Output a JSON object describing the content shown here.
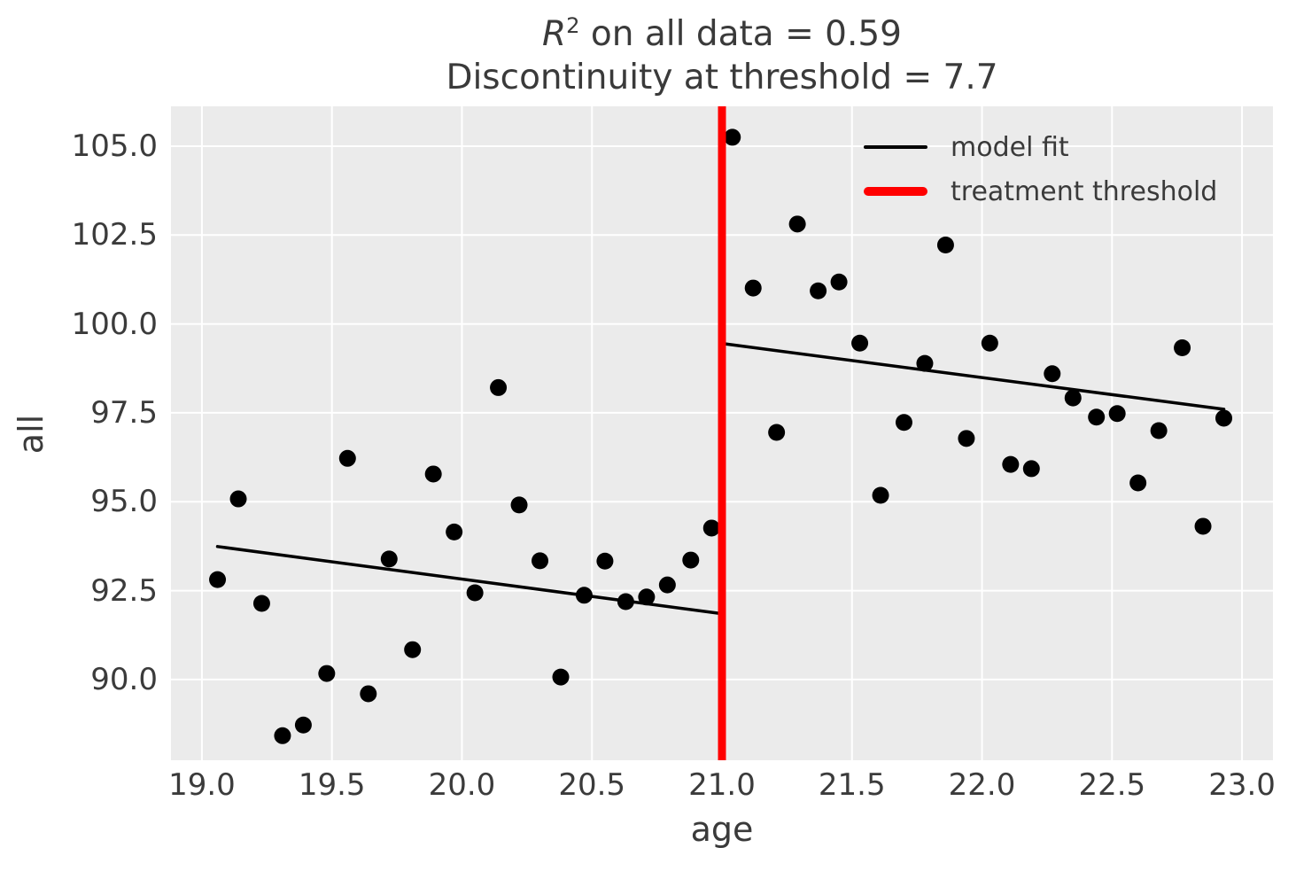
{
  "title": {
    "r_symbol": "R",
    "r_exponent": "2",
    "line1_rest": " on all data = 0.59",
    "line2": "Discontinuity at threshold = 7.7"
  },
  "axes": {
    "xlabel": "age",
    "ylabel": "all"
  },
  "legend": {
    "model_fit": "model fit",
    "treatment_threshold": "treatment threshold"
  },
  "colors": {
    "plot_background": "#ebebeb",
    "gridline": "#ffffff",
    "scatter": "#000000",
    "model_fit_line": "#000000",
    "threshold_line": "#ff0000",
    "text": "#3a3a3a"
  },
  "chart_data": {
    "type": "scatter",
    "title": "R^2 on all data = 0.59\nDiscontinuity at threshold = 7.7",
    "r_squared": 0.59,
    "discontinuity": 7.7,
    "xlabel": "age",
    "ylabel": "all",
    "xlim": [
      18.881,
      23.119
    ],
    "ylim": [
      87.73,
      106.12
    ],
    "xticks": [
      19.0,
      19.5,
      20.0,
      20.5,
      21.0,
      21.5,
      22.0,
      22.5,
      23.0
    ],
    "xtick_labels": [
      "19.0",
      "19.5",
      "20.0",
      "20.5",
      "21.0",
      "21.5",
      "22.0",
      "22.5",
      "23.0"
    ],
    "yticks": [
      90.0,
      92.5,
      95.0,
      97.5,
      100.0,
      102.5,
      105.0
    ],
    "ytick_labels": [
      "90.0",
      "92.5",
      "95.0",
      "97.5",
      "100.0",
      "102.5",
      "105.0"
    ],
    "grid": true,
    "legend_position": "upper right",
    "threshold_x": 21.0,
    "points": [
      [
        19.06,
        92.81
      ],
      [
        19.14,
        95.08
      ],
      [
        19.23,
        92.14
      ],
      [
        19.31,
        88.42
      ],
      [
        19.39,
        88.72
      ],
      [
        19.48,
        90.17
      ],
      [
        19.56,
        96.22
      ],
      [
        19.64,
        89.6
      ],
      [
        19.72,
        93.39
      ],
      [
        19.81,
        90.84
      ],
      [
        19.89,
        95.78
      ],
      [
        19.97,
        94.15
      ],
      [
        20.05,
        92.44
      ],
      [
        20.14,
        98.21
      ],
      [
        20.22,
        94.91
      ],
      [
        20.3,
        93.34
      ],
      [
        20.38,
        90.07
      ],
      [
        20.47,
        92.37
      ],
      [
        20.55,
        93.33
      ],
      [
        20.63,
        92.19
      ],
      [
        20.71,
        92.32
      ],
      [
        20.79,
        92.66
      ],
      [
        20.88,
        93.36
      ],
      [
        20.96,
        94.26
      ],
      [
        21.04,
        105.25
      ],
      [
        21.12,
        101.01
      ],
      [
        21.21,
        96.95
      ],
      [
        21.29,
        102.81
      ],
      [
        21.37,
        100.93
      ],
      [
        21.45,
        101.18
      ],
      [
        21.53,
        99.46
      ],
      [
        21.61,
        95.18
      ],
      [
        21.7,
        97.23
      ],
      [
        21.78,
        98.89
      ],
      [
        21.86,
        102.22
      ],
      [
        21.94,
        96.78
      ],
      [
        22.03,
        99.46
      ],
      [
        22.11,
        96.05
      ],
      [
        22.19,
        95.93
      ],
      [
        22.27,
        98.6
      ],
      [
        22.35,
        97.92
      ],
      [
        22.44,
        97.38
      ],
      [
        22.52,
        97.48
      ],
      [
        22.6,
        95.53
      ],
      [
        22.68,
        97.0
      ],
      [
        22.77,
        99.33
      ],
      [
        22.85,
        94.31
      ],
      [
        22.93,
        97.35
      ]
    ],
    "fit_segments": [
      {
        "x": [
          19.06,
          21.0
        ],
        "y": [
          93.74,
          91.85
        ]
      },
      {
        "x": [
          21.0,
          22.93
        ],
        "y": [
          99.45,
          97.6
        ]
      }
    ]
  }
}
